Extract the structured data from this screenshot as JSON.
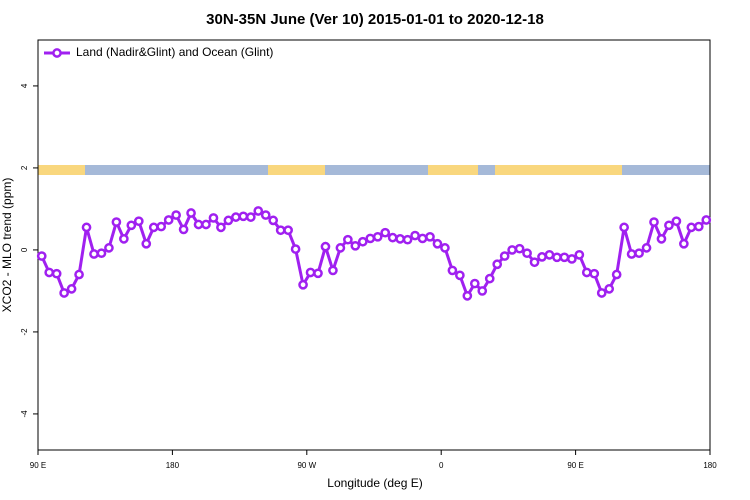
{
  "chart_data": {
    "type": "line",
    "title": "30N-35N June (Ver 10)   2015-01-01 to 2020-12-18",
    "x_label": "Longitude (deg E)",
    "y_label": "XCO2 - MLO trend (ppm)",
    "xlim": [
      90,
      540
    ],
    "ylim": [
      -4.88,
      5.12
    ],
    "xticks": [
      {
        "value": 90,
        "label": "90 E"
      },
      180,
      {
        "value": 270,
        "label": "90 W"
      },
      {
        "value": 360,
        "label": "0"
      },
      {
        "value": 450,
        "label": "90 E"
      },
      {
        "value": 540,
        "label": "180"
      }
    ],
    "yticks": [
      -4,
      -2,
      0,
      2,
      4
    ],
    "legend": "top-left",
    "x": [
      92.5,
      97.5,
      102.5,
      107.5,
      112.5,
      117.5,
      122.5,
      127.5,
      132.5,
      137.5,
      142.5,
      147.5,
      152.5,
      157.5,
      162.5,
      167.5,
      172.5,
      177.5,
      182.5,
      187.5,
      192.5,
      197.5,
      202.5,
      207.5,
      212.5,
      217.5,
      222.5,
      227.5,
      232.5,
      237.5,
      242.5,
      247.5,
      252.5,
      257.5,
      262.5,
      267.5,
      272.5,
      277.5,
      282.5,
      287.5,
      292.5,
      297.5,
      302.5,
      307.5,
      312.5,
      317.5,
      322.5,
      327.5,
      332.5,
      337.5,
      342.5,
      347.5,
      352.5,
      357.5,
      362.5,
      367.5,
      372.5,
      377.5,
      382.5,
      387.5,
      392.5,
      397.5,
      402.5,
      407.5,
      412.5,
      417.5,
      422.5,
      427.5,
      432.5,
      437.5,
      442.5,
      447.5,
      452.5,
      457.5,
      462.5,
      467.5,
      472.5,
      477.5,
      482.5,
      487.5,
      492.5,
      497.5,
      502.5,
      507.5,
      512.5,
      517.5,
      522.5,
      527.5,
      532.5,
      537.5
    ],
    "series": [
      {
        "name": "Land (Nadir&Glint) and Ocean (Glint)",
        "color": "#a020f0",
        "values": [
          -0.15,
          -0.55,
          -0.58,
          -1.05,
          -0.95,
          -0.6,
          0.55,
          -0.1,
          -0.08,
          0.05,
          0.68,
          0.27,
          0.6,
          0.7,
          0.15,
          0.55,
          0.57,
          0.73,
          0.85,
          0.5,
          0.9,
          0.62,
          0.62,
          0.78,
          0.55,
          0.72,
          0.8,
          0.82,
          0.8,
          0.95,
          0.85,
          0.72,
          0.48,
          0.48,
          0.02,
          -0.85,
          -0.55,
          -0.57,
          0.08,
          -0.5,
          0.05,
          0.25,
          0.1,
          0.2,
          0.28,
          0.32,
          0.42,
          0.3,
          0.27,
          0.25,
          0.35,
          0.28,
          0.32,
          0.15,
          0.05,
          -0.5,
          -0.62,
          -1.12,
          -0.82,
          -1.0,
          -0.7,
          -0.35,
          -0.15,
          0.0,
          0.03,
          -0.08,
          -0.3,
          -0.17,
          -0.12,
          -0.18,
          -0.18,
          -0.22,
          -0.12,
          -0.55,
          -0.58,
          -1.05,
          -0.95,
          -0.6,
          0.55,
          -0.1,
          -0.08,
          0.05,
          0.68,
          0.27,
          0.6,
          0.7,
          0.15,
          0.55,
          0.57,
          0.73
        ]
      }
    ]
  }
}
